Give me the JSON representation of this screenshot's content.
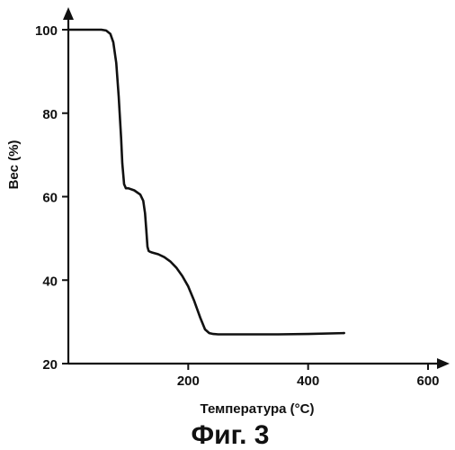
{
  "chart_data": {
    "type": "line",
    "title": "",
    "xlabel": "Температура (°C)",
    "ylabel": "Вес (%)",
    "xlim": [
      0,
      600
    ],
    "ylim": [
      20,
      100
    ],
    "xticks": [
      200,
      400,
      600
    ],
    "yticks": [
      20,
      40,
      60,
      80,
      100
    ],
    "grid": false,
    "line_color": "#111111",
    "series": [
      {
        "x": [
          0,
          20,
          40,
          55,
          63,
          70,
          75,
          80,
          84,
          88,
          90,
          93,
          96,
          100,
          110,
          120,
          125,
          128,
          130,
          132,
          134,
          136,
          140,
          150,
          160,
          170,
          180,
          190,
          200,
          210,
          220,
          228,
          235,
          242,
          250,
          270,
          300,
          350,
          400,
          460
        ],
        "y": [
          100,
          100,
          100,
          100,
          99.8,
          99,
          97,
          92,
          84,
          74,
          68,
          63,
          62,
          62,
          61.5,
          60.5,
          59,
          56,
          52,
          48,
          47,
          46.8,
          46.6,
          46.2,
          45.5,
          44.5,
          43,
          41,
          38.5,
          35,
          31,
          28.2,
          27.3,
          27.1,
          27,
          27,
          27,
          27,
          27.1,
          27.3
        ]
      }
    ]
  },
  "caption": "Фиг. 3"
}
